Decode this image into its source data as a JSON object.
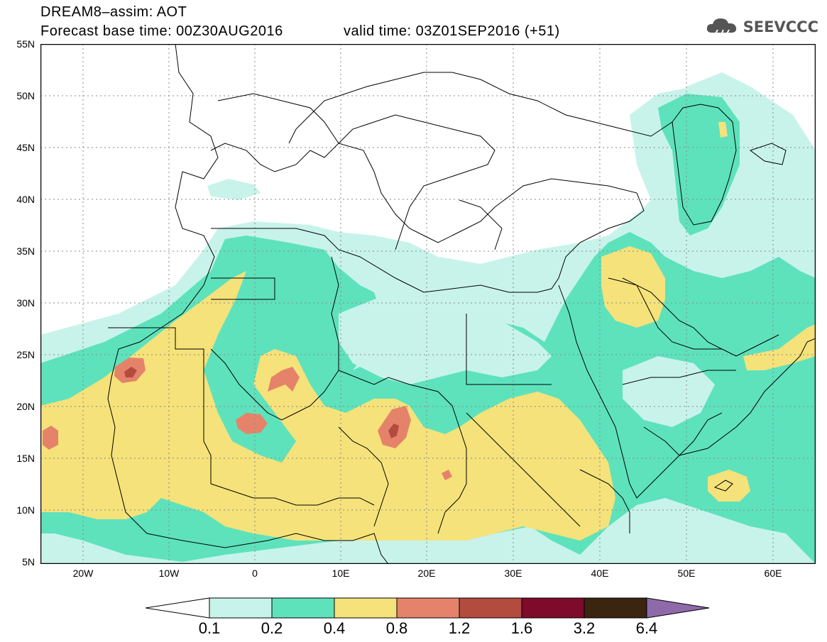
{
  "header": {
    "title": "DREAM8–assim: AOT",
    "base_time": "Forecast base time: 00Z30AUG2016",
    "valid_time": "valid time: 03Z01SEP2016 (+51)",
    "logo_text": "SEEVCCC",
    "logo_icon": "cloud-rain-icon"
  },
  "map": {
    "lat_labels": [
      "55N",
      "50N",
      "45N",
      "40N",
      "35N",
      "30N",
      "25N",
      "20N",
      "15N",
      "10N",
      "5N"
    ],
    "lon_labels": [
      "20W",
      "10W",
      "0",
      "10E",
      "20E",
      "30E",
      "40E",
      "50E",
      "60E"
    ]
  },
  "colorbar": {
    "levels": [
      "0.1",
      "0.2",
      "0.4",
      "0.8",
      "1.2",
      "1.6",
      "3.2",
      "6.4"
    ],
    "colors": [
      "#c8f3eb",
      "#5ee2bc",
      "#f5e27a",
      "#e5836a",
      "#b34b3f",
      "#7e0a2c",
      "#3b2410",
      "#8f6aab"
    ]
  },
  "colors": {
    "ocean": "#ffffff",
    "border": "#000000"
  }
}
